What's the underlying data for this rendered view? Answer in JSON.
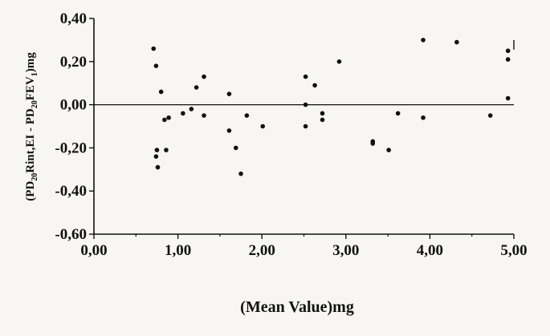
{
  "chart_data": {
    "type": "scatter",
    "title": "",
    "xlabel": "(Mean Value)mg",
    "ylabel_parts": [
      {
        "text": "(PD",
        "sub": false
      },
      {
        "text": "20",
        "sub": true
      },
      {
        "text": "Rint,EI - PD",
        "sub": false
      },
      {
        "text": "20",
        "sub": true
      },
      {
        "text": "FEV",
        "sub": false
      },
      {
        "text": "1",
        "sub": true
      },
      {
        "text": ")mg",
        "sub": false
      }
    ],
    "xlim": [
      0,
      5
    ],
    "ylim": [
      -0.6,
      0.4
    ],
    "x_ticks": [
      0,
      1,
      2,
      3,
      4,
      5
    ],
    "x_tick_labels": [
      "0,00",
      "1,00",
      "2,00",
      "3,00",
      "4,00",
      "5,00"
    ],
    "y_ticks": [
      0.4,
      0.2,
      0,
      -0.2,
      -0.4,
      -0.6
    ],
    "y_tick_labels": [
      "0,40",
      "0,20",
      "0,00",
      "-0,20",
      "-0,40",
      "-0,60"
    ],
    "reference_line_y": 0,
    "grid": false,
    "marker_color": "#111111",
    "points": [
      {
        "x": 0.71,
        "y": 0.26
      },
      {
        "x": 0.74,
        "y": 0.18
      },
      {
        "x": 0.8,
        "y": 0.06
      },
      {
        "x": 0.75,
        "y": -0.21
      },
      {
        "x": 0.74,
        "y": -0.24
      },
      {
        "x": 0.76,
        "y": -0.29
      },
      {
        "x": 0.84,
        "y": -0.07
      },
      {
        "x": 0.89,
        "y": -0.06
      },
      {
        "x": 0.86,
        "y": -0.21
      },
      {
        "x": 1.06,
        "y": -0.04
      },
      {
        "x": 1.16,
        "y": -0.02
      },
      {
        "x": 1.22,
        "y": 0.08
      },
      {
        "x": 1.31,
        "y": 0.13
      },
      {
        "x": 1.31,
        "y": -0.05
      },
      {
        "x": 1.61,
        "y": 0.05
      },
      {
        "x": 1.61,
        "y": -0.12
      },
      {
        "x": 1.69,
        "y": -0.2
      },
      {
        "x": 1.75,
        "y": -0.32
      },
      {
        "x": 1.82,
        "y": -0.05
      },
      {
        "x": 2.01,
        "y": -0.1
      },
      {
        "x": 2.52,
        "y": 0.13
      },
      {
        "x": 2.52,
        "y": 0.0
      },
      {
        "x": 2.52,
        "y": -0.1
      },
      {
        "x": 2.63,
        "y": 0.09
      },
      {
        "x": 2.72,
        "y": -0.04
      },
      {
        "x": 2.72,
        "y": -0.07
      },
      {
        "x": 2.92,
        "y": 0.2
      },
      {
        "x": 3.32,
        "y": -0.17
      },
      {
        "x": 3.32,
        "y": -0.18
      },
      {
        "x": 3.51,
        "y": -0.21
      },
      {
        "x": 3.62,
        "y": -0.04
      },
      {
        "x": 3.92,
        "y": 0.3
      },
      {
        "x": 3.92,
        "y": -0.06
      },
      {
        "x": 4.32,
        "y": 0.29
      },
      {
        "x": 4.72,
        "y": -0.05
      },
      {
        "x": 4.93,
        "y": 0.25
      },
      {
        "x": 4.93,
        "y": 0.21
      },
      {
        "x": 4.93,
        "y": 0.03
      }
    ]
  }
}
